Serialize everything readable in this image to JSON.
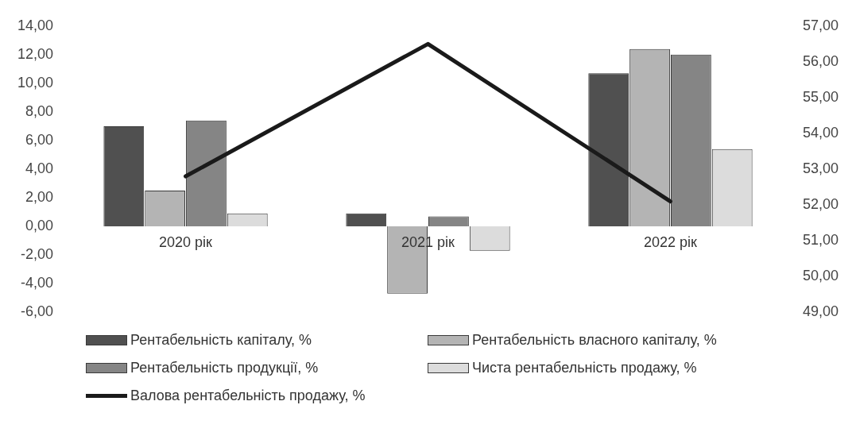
{
  "chart_data": {
    "type": "bar",
    "categories": [
      "2020 рік",
      "2021 рік",
      "2022 рік"
    ],
    "series": [
      {
        "name": "Рентабельність капіталу, %",
        "color": "#505050",
        "values": [
          7.0,
          0.9,
          10.7
        ]
      },
      {
        "name": "Рентабельність власного капіталу, %",
        "color": "#b4b4b4",
        "values": [
          2.5,
          -4.7,
          12.4
        ]
      },
      {
        "name": "Рентабельність продукції, %",
        "color": "#858585",
        "values": [
          7.4,
          0.7,
          12.0
        ]
      },
      {
        "name": "Чиста рентабельність продажу, %",
        "color": "#dcdcdc",
        "values": [
          0.9,
          -1.7,
          5.4
        ]
      },
      {
        "name": "Валова рентабельність продажу, %",
        "color": "#1a1a1a",
        "type": "line",
        "axis": "y2",
        "values": [
          52.8,
          56.5,
          52.1
        ]
      }
    ],
    "ylim": [
      -6,
      14
    ],
    "yticks": [
      {
        "value": -6,
        "label": "-6,00"
      },
      {
        "value": -4,
        "label": "-4,00"
      },
      {
        "value": -2,
        "label": "-2,00"
      },
      {
        "value": 0,
        "label": "0,00"
      },
      {
        "value": 2,
        "label": "2,00"
      },
      {
        "value": 4,
        "label": "4,00"
      },
      {
        "value": 6,
        "label": "6,00"
      },
      {
        "value": 8,
        "label": "8,00"
      },
      {
        "value": 10,
        "label": "10,00"
      },
      {
        "value": 12,
        "label": "12,00"
      },
      {
        "value": 14,
        "label": "14,00"
      }
    ],
    "y2lim": [
      49,
      57
    ],
    "y2ticks": [
      {
        "value": 49,
        "label": "49,00"
      },
      {
        "value": 50,
        "label": "50,00"
      },
      {
        "value": 51,
        "label": "51,00"
      },
      {
        "value": 52,
        "label": "52,00"
      },
      {
        "value": 53,
        "label": "53,00"
      },
      {
        "value": 54,
        "label": "54,00"
      },
      {
        "value": 55,
        "label": "55,00"
      },
      {
        "value": 56,
        "label": "56,00"
      },
      {
        "value": 57,
        "label": "57,00"
      }
    ],
    "grid": false,
    "legend": "bottom",
    "marker": "none"
  }
}
